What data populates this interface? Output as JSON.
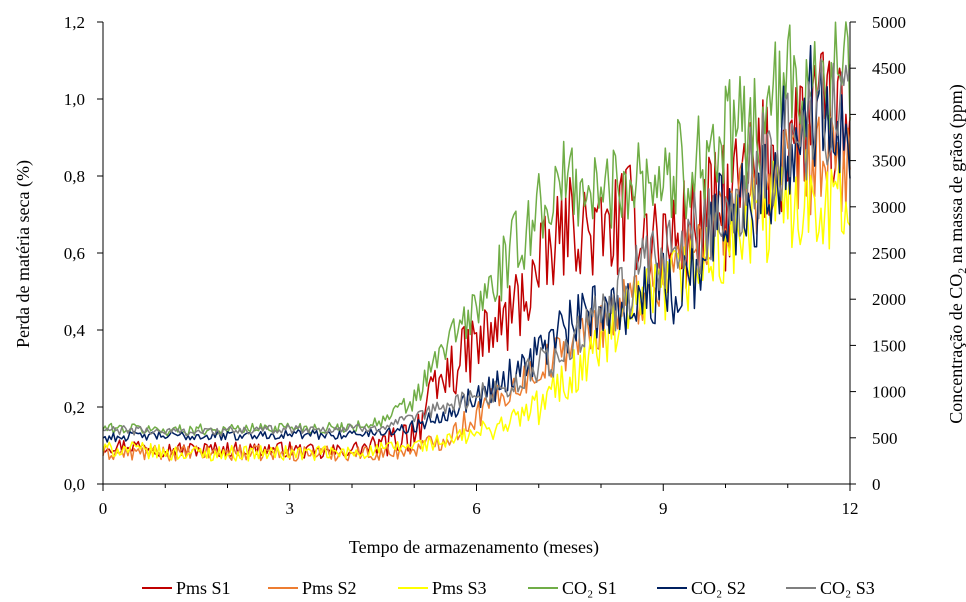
{
  "chart_data": {
    "type": "line",
    "xlabel": "Tempo de armazenamento  (meses)",
    "ylabel": "Perda de matéria seca (%)",
    "y2label_prefix": "Concentração  de CO",
    "y2label_subscript": "2",
    "y2label_suffix": " na massa de grãos  (ppm)",
    "xlim": [
      0,
      12
    ],
    "ylim": [
      0,
      1.2
    ],
    "y2lim": [
      0,
      5000
    ],
    "xticks": [
      0,
      3,
      6,
      9,
      12
    ],
    "xtick_labels": [
      "0",
      "3",
      "6",
      "9",
      "12"
    ],
    "yticks": [
      0,
      0.2,
      0.4,
      0.6,
      0.8,
      1.0,
      1.2
    ],
    "ytick_labels": [
      "0,0",
      "0,2",
      "0,4",
      "0,6",
      "0,8",
      "1,0",
      "1,2"
    ],
    "y2ticks": [
      0,
      500,
      1000,
      1500,
      2000,
      2500,
      3000,
      3500,
      4000,
      4500,
      5000
    ],
    "y2tick_labels": [
      "0",
      "500",
      "1000",
      "1500",
      "2000",
      "2500",
      "3000",
      "3500",
      "4000",
      "4500",
      "5000"
    ],
    "grid": false,
    "legend_position": "bottom",
    "x": [
      0,
      0.5,
      1,
      1.5,
      2,
      2.5,
      3,
      3.5,
      4,
      4.5,
      5,
      5.5,
      6,
      6.5,
      7,
      7.5,
      8,
      8.5,
      9,
      9.5,
      10,
      10.5,
      11,
      11.5,
      12
    ],
    "series": [
      {
        "name": "Pms S1",
        "axis": "left",
        "color": "#c00000",
        "values": [
          0.1,
          0.1,
          0.09,
          0.09,
          0.09,
          0.09,
          0.09,
          0.08,
          0.09,
          0.1,
          0.14,
          0.28,
          0.36,
          0.43,
          0.55,
          0.68,
          0.64,
          0.7,
          0.62,
          0.66,
          0.72,
          0.82,
          0.88,
          0.96,
          0.9
        ],
        "noise": [
          0.02,
          0.02,
          0.02,
          0.02,
          0.02,
          0.02,
          0.02,
          0.02,
          0.02,
          0.03,
          0.06,
          0.07,
          0.09,
          0.1,
          0.12,
          0.12,
          0.13,
          0.14,
          0.15,
          0.16,
          0.17,
          0.17,
          0.18,
          0.18,
          0.18
        ]
      },
      {
        "name": "Pms S2",
        "axis": "left",
        "color": "#ed7d31",
        "values": [
          0.08,
          0.08,
          0.08,
          0.08,
          0.08,
          0.08,
          0.08,
          0.08,
          0.08,
          0.08,
          0.09,
          0.12,
          0.18,
          0.24,
          0.3,
          0.36,
          0.42,
          0.48,
          0.55,
          0.62,
          0.7,
          0.76,
          0.8,
          0.84,
          0.82
        ],
        "noise": [
          0.02,
          0.02,
          0.02,
          0.02,
          0.02,
          0.02,
          0.02,
          0.02,
          0.02,
          0.02,
          0.02,
          0.03,
          0.04,
          0.04,
          0.05,
          0.06,
          0.07,
          0.08,
          0.09,
          0.1,
          0.11,
          0.12,
          0.13,
          0.13,
          0.13
        ]
      },
      {
        "name": "Pms S3",
        "axis": "left",
        "color": "#ffff00",
        "values": [
          0.09,
          0.09,
          0.08,
          0.08,
          0.08,
          0.08,
          0.08,
          0.08,
          0.08,
          0.09,
          0.1,
          0.11,
          0.13,
          0.16,
          0.2,
          0.28,
          0.36,
          0.44,
          0.5,
          0.56,
          0.62,
          0.68,
          0.74,
          0.76,
          0.72
        ],
        "noise": [
          0.02,
          0.02,
          0.02,
          0.02,
          0.02,
          0.02,
          0.02,
          0.02,
          0.02,
          0.02,
          0.02,
          0.02,
          0.03,
          0.03,
          0.05,
          0.07,
          0.08,
          0.09,
          0.1,
          0.11,
          0.12,
          0.13,
          0.14,
          0.14,
          0.14
        ]
      },
      {
        "name": "CO₂ S1",
        "axis": "right",
        "color": "#70ad47",
        "values": [
          600,
          600,
          580,
          590,
          590,
          600,
          620,
          600,
          620,
          680,
          900,
          1500,
          1900,
          2400,
          3000,
          3300,
          3100,
          3400,
          3300,
          3500,
          3700,
          3900,
          4300,
          4500,
          4400
        ],
        "noise": [
          60,
          60,
          60,
          60,
          60,
          60,
          60,
          60,
          60,
          70,
          150,
          200,
          280,
          380,
          450,
          500,
          500,
          550,
          550,
          600,
          650,
          650,
          700,
          700,
          700
        ]
      },
      {
        "name": "CO₂ S2",
        "axis": "right",
        "color": "#002060",
        "values": [
          500,
          520,
          520,
          520,
          520,
          530,
          540,
          530,
          540,
          560,
          620,
          780,
          950,
          1150,
          1450,
          1700,
          1900,
          2000,
          2100,
          2300,
          3000,
          3200,
          3700,
          4200,
          4000
        ],
        "noise": [
          50,
          50,
          50,
          50,
          50,
          50,
          50,
          50,
          50,
          50,
          70,
          110,
          150,
          200,
          260,
          300,
          340,
          380,
          420,
          480,
          600,
          650,
          700,
          700,
          700
        ]
      },
      {
        "name": "CO₂ S3",
        "axis": "right",
        "color": "#7f7f7f",
        "values": [
          580,
          580,
          570,
          570,
          570,
          580,
          600,
          590,
          600,
          620,
          700,
          850,
          950,
          1050,
          1250,
          1500,
          1800,
          2200,
          2400,
          2700,
          3000,
          3400,
          3700,
          4000,
          4100
        ],
        "noise": [
          50,
          50,
          50,
          50,
          50,
          50,
          50,
          50,
          50,
          50,
          70,
          100,
          120,
          160,
          220,
          280,
          320,
          380,
          420,
          480,
          540,
          580,
          620,
          640,
          640
        ]
      }
    ]
  }
}
